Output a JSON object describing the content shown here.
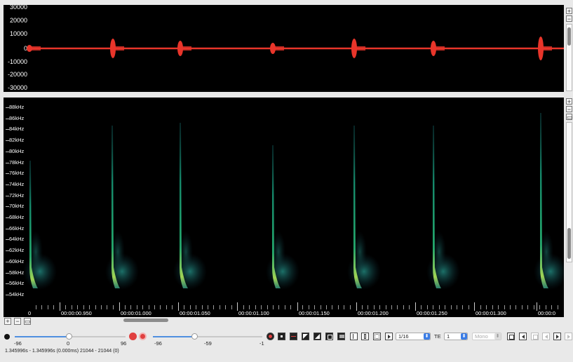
{
  "waveform": {
    "y_labels": [
      "30000",
      "20000",
      "10000",
      "0",
      "-10000",
      "-20000",
      "-30000"
    ],
    "color": "#e8352a"
  },
  "spectrogram": {
    "freq_labels": [
      "88kHz",
      "86kHz",
      "84kHz",
      "82kHz",
      "80kHz",
      "78kHz",
      "76kHz",
      "74kHz",
      "72kHz",
      "70kHz",
      "68kHz",
      "66kHz",
      "64kHz",
      "62kHz",
      "60kHz",
      "58kHz",
      "56kHz",
      "54kHz"
    ],
    "time_labels": [
      "00:00:00.950",
      "00:00:01.000",
      "00:00:01.050",
      "00:00:01.100",
      "00:00:01.150",
      "00:00:01.200",
      "00:00:01.250",
      "00:00:01.300",
      "00:00:0"
    ],
    "time_first_label": "0"
  },
  "controls": {
    "gain_min": "-96",
    "gain_value": "0",
    "gain_max": "96",
    "range_min": "-96",
    "range_value": "-59",
    "range_max": "-1",
    "page_select": "1/16",
    "channel_label": "TE",
    "channel_value": "1",
    "mode_select": "Mono",
    "status": "1.345996s - 1.345996s (0.000ms) 21044 - 21044 (0)"
  },
  "accent_color": "#3b7de6"
}
